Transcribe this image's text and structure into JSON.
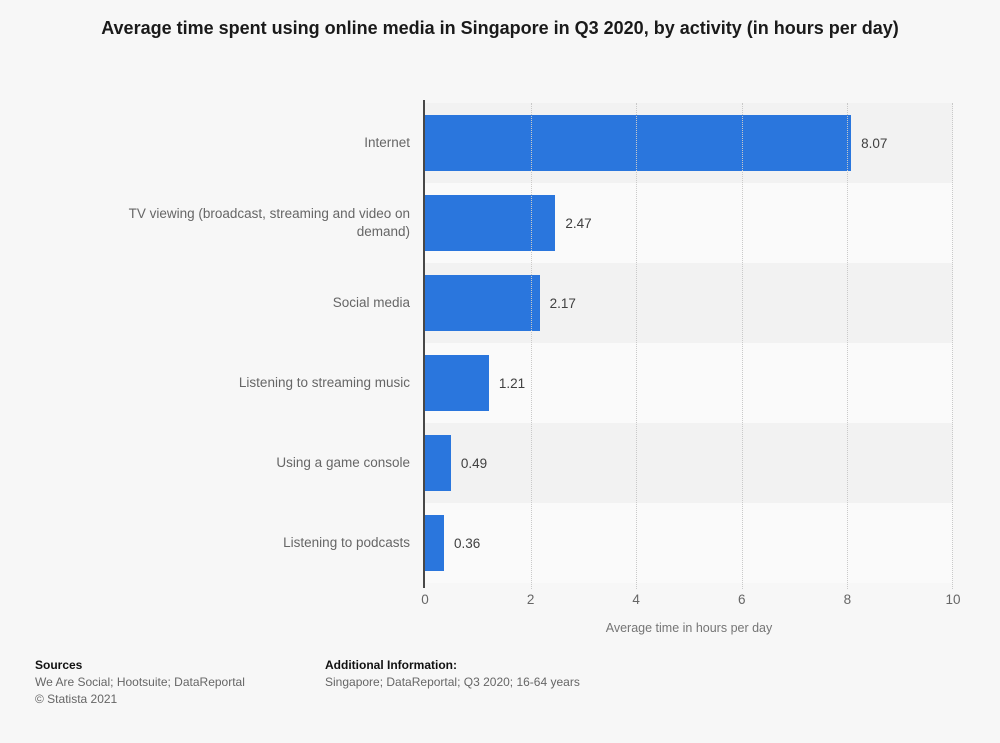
{
  "title": "Average time spent using online media in Singapore in Q3 2020, by activity (in hours per day)",
  "chart_data": {
    "type": "bar",
    "orientation": "horizontal",
    "categories": [
      "Internet",
      "TV viewing (broadcast, streaming and video on demand)",
      "Social media",
      "Listening to streaming music",
      "Using a game console",
      "Listening to podcasts"
    ],
    "values": [
      8.07,
      2.47,
      2.17,
      1.21,
      0.49,
      0.36
    ],
    "value_labels": [
      "8.07",
      "2.47",
      "2.17",
      "1.21",
      "0.49",
      "0.36"
    ],
    "xlabel": "Average time in hours per day",
    "xlim": [
      0,
      10
    ],
    "xticks": [
      0,
      2,
      4,
      6,
      8,
      10
    ],
    "grid": "vertical-dotted",
    "legend": "none",
    "bar_color": "#2a76dd",
    "row_band_colors": [
      "#f2f2f2",
      "#fafafa"
    ]
  },
  "footer": {
    "sources_heading": "Sources",
    "sources_line": "We Are Social; Hootsuite; DataReportal",
    "copyright": "© Statista 2021",
    "additional_heading": "Additional Information:",
    "additional_line": "Singapore; DataReportal; Q3 2020; 16-64 years"
  }
}
